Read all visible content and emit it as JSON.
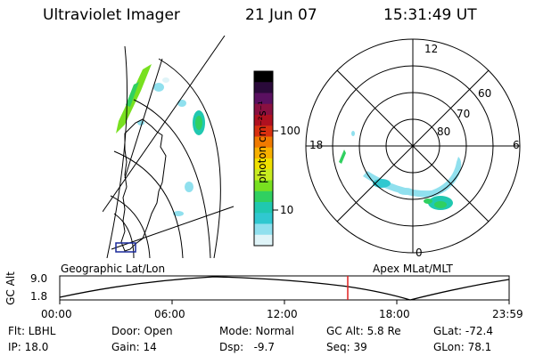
{
  "header": {
    "title": "Ultraviolet Imager",
    "date": "21 Jun 07",
    "time": "15:31:49 UT"
  },
  "colorbar": {
    "unit_label": "photon cm⁻²s⁻¹",
    "ticks": [
      "100",
      "10"
    ],
    "colors": [
      "#000000",
      "#2a0a3a",
      "#5a1060",
      "#8a1040",
      "#b01020",
      "#d83010",
      "#f07a00",
      "#f8b000",
      "#f0e000",
      "#c8ec20",
      "#78e020",
      "#30d060",
      "#20c8b0",
      "#30c8d0",
      "#90e0ee",
      "#dff4f8"
    ]
  },
  "geo_map": {
    "label": "Geographic Lat/Lon"
  },
  "polar_plot": {
    "label": "Apex MLat/MLT",
    "lat_labels": [
      "60",
      "70",
      "80"
    ],
    "mlt_labels": [
      "12",
      "18",
      "6",
      "0"
    ]
  },
  "alt_chart": {
    "ylabel": "GC Alt",
    "yticks": [
      "9.0",
      "1.8"
    ],
    "xticks": [
      "00:00",
      "06:00",
      "12:00",
      "18:00",
      "23:59"
    ],
    "marker_time": "15:31",
    "marker_color": "#e02020"
  },
  "status": {
    "filter": "Flt: LBHL",
    "door": "Door: Open",
    "mode": "Mode: Normal",
    "gc_alt": "GC Alt: 5.8 Re",
    "glat": "GLat: -72.4",
    "ip": "IP: 18.0",
    "gain": "Gain: 14",
    "dsp": "Dsp:   -9.7",
    "seq": "Seq: 39",
    "glon": "GLon: 78.1"
  }
}
